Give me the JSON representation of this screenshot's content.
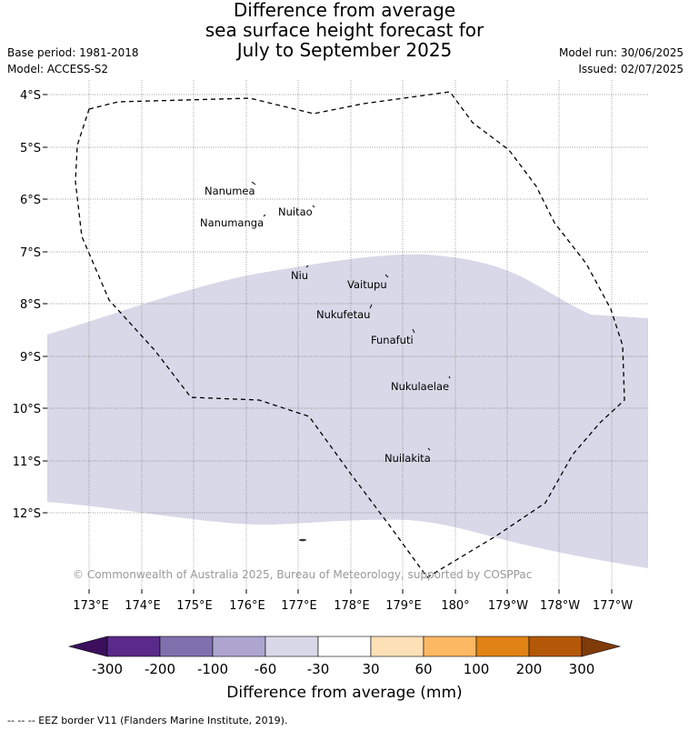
{
  "title": {
    "line1": "Difference from average",
    "line2": "sea surface height forecast for",
    "line3": "July to September 2025"
  },
  "meta": {
    "base_period": "Base period: 1981-2018",
    "model": "Model: ACCESS-S2",
    "model_run": "Model run: 30/06/2025",
    "issued": "Issued: 02/07/2025"
  },
  "map": {
    "lat_labels": [
      "4°S",
      "5°S",
      "6°S",
      "7°S",
      "8°S",
      "9°S",
      "10°S",
      "11°S",
      "12°S"
    ],
    "lon_labels": [
      "173°E",
      "174°E",
      "175°E",
      "176°E",
      "177°E",
      "178°E",
      "179°E",
      "180°",
      "179°W",
      "178°W",
      "177°W"
    ],
    "islands": [
      {
        "name": "Nanumea"
      },
      {
        "name": "Nuitao"
      },
      {
        "name": "Nanumanga"
      },
      {
        "name": "Niu"
      },
      {
        "name": "Vaitupu"
      },
      {
        "name": "Nukufetau"
      },
      {
        "name": "Funafuti"
      },
      {
        "name": "Nukulaelae"
      },
      {
        "name": "Nuilakita"
      }
    ],
    "copyright": "© Commonwealth of Australia 2025, Bureau of Meteorology, supported by COSPPac",
    "shaded_class_color": "#d8d8e8"
  },
  "legend": {
    "title": "Difference from average (mm)",
    "tick_labels": [
      "-300",
      "-200",
      "-100",
      "-60",
      "-30",
      "30",
      "60",
      "100",
      "200",
      "300"
    ],
    "colors": [
      "#3b0f5c",
      "#5a2a8a",
      "#8170ae",
      "#ada5cf",
      "#d8d8e8",
      "#ffffff",
      "#fee0b6",
      "#fdb863",
      "#e08214",
      "#b35806",
      "#7f3b08"
    ]
  },
  "footnote": "-- -- -- EEZ border V11 (Flanders Marine Institute, 2019)."
}
